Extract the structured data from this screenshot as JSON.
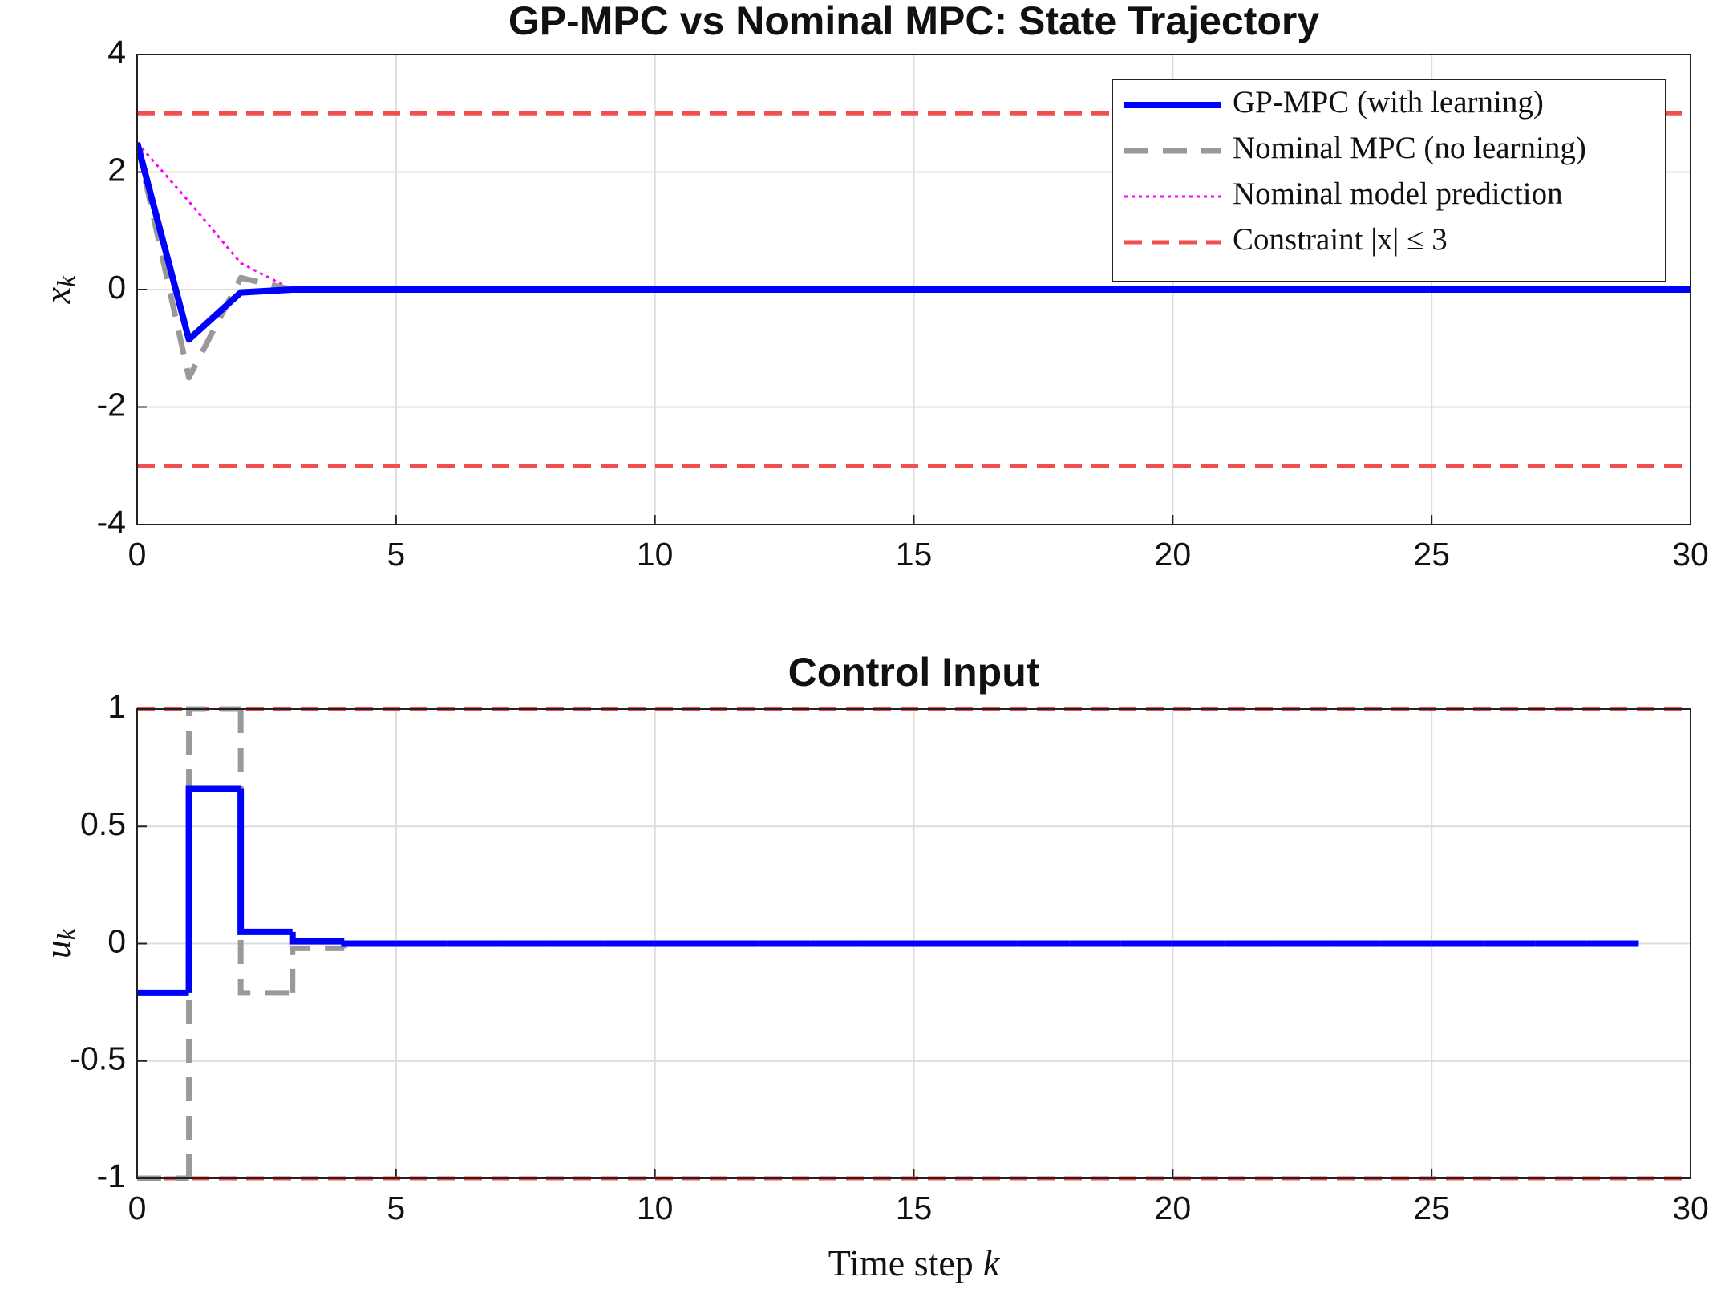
{
  "chart_data": [
    {
      "type": "line",
      "title": "GP-MPC vs Nominal MPC: State Trajectory",
      "ylabel": {
        "text": "x",
        "subscript": "k"
      },
      "x": [
        0,
        1,
        2,
        3,
        4,
        5,
        6,
        7,
        8,
        9,
        10,
        11,
        12,
        13,
        14,
        15,
        16,
        17,
        18,
        19,
        20,
        21,
        22,
        23,
        24,
        25,
        26,
        27,
        28,
        29,
        30
      ],
      "series": [
        {
          "name": "GP-MPC (with learning)",
          "color": "#0000ff",
          "style": "solid",
          "values": [
            2.5,
            -0.85,
            -0.05,
            0,
            0,
            0,
            0,
            0,
            0,
            0,
            0,
            0,
            0,
            0,
            0,
            0,
            0,
            0,
            0,
            0,
            0,
            0,
            0,
            0,
            0,
            0,
            0,
            0,
            0,
            0,
            0
          ]
        },
        {
          "name": "Nominal MPC (no learning)",
          "color": "#999999",
          "style": "dashed",
          "values": [
            2.5,
            -1.5,
            0.2,
            0,
            0,
            0,
            0,
            0,
            0,
            0,
            0,
            0,
            0,
            0,
            0,
            0,
            0,
            0,
            0,
            0,
            0,
            0,
            0,
            0,
            0,
            0,
            0,
            0,
            0,
            0,
            0
          ]
        },
        {
          "name": "Nominal model prediction",
          "color": "#ff00ff",
          "style": "dotted",
          "values": [
            2.5,
            1.5,
            0.45,
            0,
            0,
            0,
            0,
            0,
            0,
            0,
            0,
            0,
            0,
            0,
            0,
            0,
            0,
            0,
            0,
            0,
            0,
            0,
            0,
            0,
            0,
            0,
            0,
            0,
            0,
            0,
            0
          ]
        }
      ],
      "constraint": {
        "name": "Constraint |x| ≤ 3",
        "color": "#f24e4e",
        "values": [
          3,
          -3
        ]
      },
      "xlim": [
        0,
        30
      ],
      "xticks": [
        0,
        5,
        10,
        15,
        20,
        25,
        30
      ],
      "ylim": [
        -4,
        4
      ],
      "yticks": [
        -4,
        -2,
        0,
        2,
        4
      ],
      "grid": true,
      "legend": "top-right"
    },
    {
      "type": "stairs",
      "title": "Control Input",
      "ylabel": {
        "text": "u",
        "subscript": "k"
      },
      "xlabel": {
        "text": "Time step",
        "variable": "k"
      },
      "x": [
        0,
        1,
        2,
        3,
        4,
        5,
        6,
        7,
        8,
        9,
        10,
        11,
        12,
        13,
        14,
        15,
        16,
        17,
        18,
        19,
        20,
        21,
        22,
        23,
        24,
        25,
        26,
        27,
        28,
        29
      ],
      "series": [
        {
          "color": "#0000ff",
          "style": "solid",
          "values": [
            -0.21,
            0.66,
            0.05,
            0.01,
            0,
            0,
            0,
            0,
            0,
            0,
            0,
            0,
            0,
            0,
            0,
            0,
            0,
            0,
            0,
            0,
            0,
            0,
            0,
            0,
            0,
            0,
            0,
            0,
            0,
            0
          ]
        },
        {
          "color": "#999999",
          "style": "dashed",
          "values": [
            -1,
            1,
            -0.21,
            -0.02,
            0,
            0,
            0,
            0,
            0,
            0,
            0,
            0,
            0,
            0,
            0,
            0,
            0,
            0,
            0,
            0,
            0,
            0,
            0,
            0,
            0,
            0,
            0,
            0,
            0,
            0
          ]
        }
      ],
      "constraint": {
        "color": "#f24e4e",
        "values": [
          1,
          -1
        ]
      },
      "xlim": [
        0,
        30
      ],
      "xticks": [
        0,
        5,
        10,
        15,
        20,
        25,
        30
      ],
      "ylim": [
        -1,
        1
      ],
      "yticks": [
        -1,
        -0.5,
        0,
        0.5,
        1
      ],
      "grid": true
    }
  ]
}
